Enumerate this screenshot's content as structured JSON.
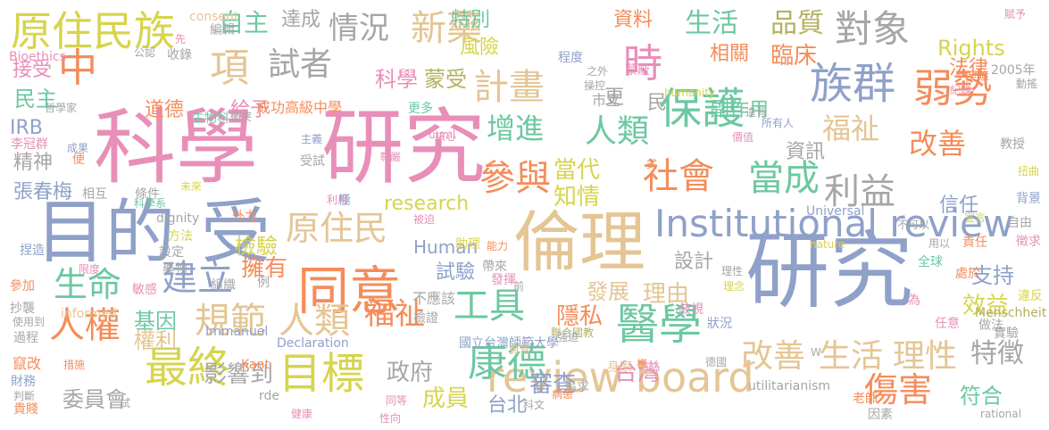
{
  "palette": {
    "orange": "#f58c5a",
    "pink": "#e88fb9",
    "blue": "#8fa1c9",
    "sand": "#e4c594",
    "green": "#6cc8a2",
    "gray": "#a6a6a6",
    "yellow": "#d7d44d",
    "olive": "#b3b05f"
  },
  "words": [
    {
      "text": "科學",
      "color": "pink"
    },
    {
      "text": "研究",
      "color": "pink"
    },
    {
      "text": "研究",
      "color": "blue"
    },
    {
      "text": "倫理",
      "color": "sand"
    },
    {
      "text": "目的",
      "color": "blue"
    },
    {
      "text": "受",
      "color": "blue"
    },
    {
      "text": "原住民族",
      "color": "yellow"
    },
    {
      "text": "中",
      "color": "orange"
    },
    {
      "text": "項",
      "color": "sand"
    },
    {
      "text": "試者",
      "color": "gray"
    },
    {
      "text": "情況",
      "color": "gray"
    },
    {
      "text": "新藥",
      "color": "sand"
    },
    {
      "text": "計畫",
      "color": "sand"
    },
    {
      "text": "時",
      "color": "pink"
    },
    {
      "text": "對象",
      "color": "gray"
    },
    {
      "text": "族群",
      "color": "blue"
    },
    {
      "text": "弱勢",
      "color": "orange"
    },
    {
      "text": "保護",
      "color": "green"
    },
    {
      "text": "增進",
      "color": "green"
    },
    {
      "text": "人類",
      "color": "green"
    },
    {
      "text": "參與",
      "color": "orange"
    },
    {
      "text": "社會",
      "color": "orange"
    },
    {
      "text": "當成",
      "color": "green"
    },
    {
      "text": "利益",
      "color": "gray"
    },
    {
      "text": "Institutional review",
      "color": "blue"
    },
    {
      "text": "review board",
      "color": "sand"
    },
    {
      "text": "同意",
      "color": "orange"
    },
    {
      "text": "醫學",
      "color": "green"
    },
    {
      "text": "康德",
      "color": "green"
    },
    {
      "text": "最終",
      "color": "yellow"
    },
    {
      "text": "目標",
      "color": "yellow"
    },
    {
      "text": "人權",
      "color": "orange"
    },
    {
      "text": "規範",
      "color": "sand"
    },
    {
      "text": "人類",
      "color": "sand"
    },
    {
      "text": "原住民",
      "color": "sand"
    },
    {
      "text": "建立",
      "color": "blue"
    },
    {
      "text": "生命",
      "color": "green"
    },
    {
      "text": "工具",
      "color": "green"
    },
    {
      "text": "改善",
      "color": "sand"
    },
    {
      "text": "生活",
      "color": "sand"
    },
    {
      "text": "理性",
      "color": "sand"
    },
    {
      "text": "特徵",
      "color": "gray"
    },
    {
      "text": "傷害",
      "color": "orange"
    },
    {
      "text": "福祉",
      "color": "sand"
    },
    {
      "text": "改善",
      "color": "orange"
    },
    {
      "text": "福祉",
      "color": "orange"
    },
    {
      "text": "當代",
      "color": "yellow"
    },
    {
      "text": "知情",
      "color": "yellow"
    },
    {
      "text": "檢驗",
      "color": "yellow"
    },
    {
      "text": "擁有",
      "color": "orange"
    },
    {
      "text": "research",
      "color": "yellow"
    },
    {
      "text": "Human",
      "color": "blue"
    },
    {
      "text": "生活",
      "color": "green"
    },
    {
      "text": "品質",
      "color": "olive"
    },
    {
      "text": "自主",
      "color": "green"
    },
    {
      "text": "達成",
      "color": "gray"
    },
    {
      "text": "特別",
      "color": "green"
    },
    {
      "text": "風險",
      "color": "yellow"
    },
    {
      "text": "資料",
      "color": "orange"
    },
    {
      "text": "相關",
      "color": "orange"
    },
    {
      "text": "臨床",
      "color": "orange"
    },
    {
      "text": "Rights",
      "color": "yellow"
    },
    {
      "text": "法律",
      "color": "orange"
    },
    {
      "text": "科學",
      "color": "pink"
    },
    {
      "text": "蒙受",
      "color": "olive"
    },
    {
      "text": "道德",
      "color": "orange"
    },
    {
      "text": "給予",
      "color": "pink"
    },
    {
      "text": "成功高級中學",
      "color": "orange"
    },
    {
      "text": "副作用",
      "color": "green"
    },
    {
      "text": "資訊",
      "color": "gray"
    },
    {
      "text": "信任",
      "color": "blue"
    },
    {
      "text": "民主",
      "color": "green"
    },
    {
      "text": "接受",
      "color": "pink"
    },
    {
      "text": "精神",
      "color": "gray"
    },
    {
      "text": "張春梅",
      "color": "blue"
    },
    {
      "text": "基因",
      "color": "green"
    },
    {
      "text": "權利",
      "color": "sand"
    },
    {
      "text": "影響到",
      "color": "gray"
    },
    {
      "text": "委員會",
      "color": "gray"
    },
    {
      "text": "政府",
      "color": "gray"
    },
    {
      "text": "審查",
      "color": "blue"
    },
    {
      "text": "台灣",
      "color": "pink"
    },
    {
      "text": "成員",
      "color": "yellow"
    },
    {
      "text": "台北",
      "color": "blue"
    },
    {
      "text": "發展",
      "color": "sand"
    },
    {
      "text": "理由",
      "color": "sand"
    },
    {
      "text": "隱私",
      "color": "orange"
    },
    {
      "text": "試驗",
      "color": "blue"
    },
    {
      "text": "設計",
      "color": "gray"
    },
    {
      "text": "支持",
      "color": "blue"
    },
    {
      "text": "效益",
      "color": "yellow"
    },
    {
      "text": "符合",
      "color": "green"
    },
    {
      "text": "老師",
      "color": "orange"
    },
    {
      "text": "IRB",
      "color": "blue"
    },
    {
      "text": "更",
      "color": "gray"
    },
    {
      "text": "民",
      "color": "gray"
    },
    {
      "text": "市立",
      "color": "gray"
    },
    {
      "text": "國立台灣師範大學",
      "color": "blue"
    },
    {
      "text": "不應該",
      "color": "gray"
    },
    {
      "text": "聯合國教",
      "color": "olive"
    },
    {
      "text": "Declaration",
      "color": "blue"
    },
    {
      "text": "utilitarianism",
      "color": "gray"
    },
    {
      "text": "Universal",
      "color": "blue"
    },
    {
      "text": "Menschheit",
      "color": "olive"
    },
    {
      "text": "informed",
      "color": "sand"
    },
    {
      "text": "Immanuel",
      "color": "blue"
    },
    {
      "text": "consent",
      "color": "sand"
    },
    {
      "text": "Bioethics",
      "color": "pink"
    },
    {
      "text": "dignity",
      "color": "gray"
    },
    {
      "text": "humanity",
      "color": "yellow"
    },
    {
      "text": "rational",
      "color": "gray"
    },
    {
      "text": "nature",
      "color": "yellow"
    },
    {
      "text": "Kant",
      "color": "orange"
    },
    {
      "text": "rde",
      "color": "gray"
    },
    {
      "text": "uuml",
      "color": "pink"
    },
    {
      "text": "2005年",
      "color": "gray"
    },
    {
      "text": "賦予",
      "color": "pink"
    },
    {
      "text": "編輯",
      "color": "gray"
    },
    {
      "text": "公認",
      "color": "gray"
    },
    {
      "text": "收錄",
      "color": "gray"
    },
    {
      "text": "哲學家",
      "color": "gray"
    },
    {
      "text": "李冠群",
      "color": "pink"
    },
    {
      "text": "成果",
      "color": "blue"
    },
    {
      "text": "生物科",
      "color": "green"
    },
    {
      "text": "衝突",
      "color": "gray"
    },
    {
      "text": "主義",
      "color": "blue"
    },
    {
      "text": "受試",
      "color": "gray"
    },
    {
      "text": "尊嚴",
      "color": "pink"
    },
    {
      "text": "核心",
      "color": "pink"
    },
    {
      "text": "更多",
      "color": "green"
    },
    {
      "text": "程度",
      "color": "blue"
    },
    {
      "text": "之外",
      "color": "gray"
    },
    {
      "text": "操控",
      "color": "gray"
    },
    {
      "text": "蒙蔽",
      "color": "pink"
    },
    {
      "text": "紀錄",
      "color": "pink"
    },
    {
      "text": "保障",
      "color": "orange"
    },
    {
      "text": "動搖",
      "color": "gray"
    },
    {
      "text": "違背",
      "color": "gray"
    },
    {
      "text": "所有人",
      "color": "blue"
    },
    {
      "text": "教授",
      "color": "gray"
    },
    {
      "text": "價值",
      "color": "pink"
    },
    {
      "text": "式",
      "color": "orange"
    },
    {
      "text": "扭曲",
      "color": "yellow"
    },
    {
      "text": "背景",
      "color": "blue"
    },
    {
      "text": "自由",
      "color": "gray"
    },
    {
      "text": "宣言",
      "color": "yellow"
    },
    {
      "text": "不可以",
      "color": "gray"
    },
    {
      "text": "徵求",
      "color": "pink"
    },
    {
      "text": "用以",
      "color": "gray"
    },
    {
      "text": "責任",
      "color": "orange"
    },
    {
      "text": "全球",
      "color": "green"
    },
    {
      "text": "理性",
      "color": "gray"
    },
    {
      "text": "理念",
      "color": "yellow"
    },
    {
      "text": "處於",
      "color": "orange"
    },
    {
      "text": "違反",
      "color": "yellow"
    },
    {
      "text": "實驗",
      "color": "gray"
    },
    {
      "text": "做法",
      "color": "gray"
    },
    {
      "text": "任意",
      "color": "pink"
    },
    {
      "text": "為",
      "color": "pink"
    },
    {
      "text": "狀況",
      "color": "blue"
    },
    {
      "text": "歧視",
      "color": "pink"
    },
    {
      "text": "因素",
      "color": "gray"
    },
    {
      "text": "德國",
      "color": "gray"
    },
    {
      "text": "身家",
      "color": "sand"
    },
    {
      "text": "樣",
      "color": "orange"
    },
    {
      "text": "追求",
      "color": "gray"
    },
    {
      "text": "病患",
      "color": "orange"
    },
    {
      "text": "科文",
      "color": "gray"
    },
    {
      "text": "貧富",
      "color": "sand"
    },
    {
      "text": "同等",
      "color": "pink"
    },
    {
      "text": "性向",
      "color": "pink"
    },
    {
      "text": "健康",
      "color": "pink"
    },
    {
      "text": "檢證",
      "color": "gray"
    },
    {
      "text": "強迫",
      "color": "gray"
    },
    {
      "text": "帶來",
      "color": "gray"
    },
    {
      "text": "發揮",
      "color": "pink"
    },
    {
      "text": "能力",
      "color": "orange"
    },
    {
      "text": "助理",
      "color": "yellow"
    },
    {
      "text": "被迫",
      "color": "pink"
    },
    {
      "text": "利用",
      "color": "pink"
    },
    {
      "text": "極",
      "color": "blue"
    },
    {
      "text": "外力",
      "color": "orange"
    },
    {
      "text": "方法",
      "color": "yellow"
    },
    {
      "text": "設定",
      "color": "gray"
    },
    {
      "text": "藥物",
      "color": "gray"
    },
    {
      "text": "組織",
      "color": "gray"
    },
    {
      "text": "例",
      "color": "gray"
    },
    {
      "text": "捏造",
      "color": "blue"
    },
    {
      "text": "限度",
      "color": "pink"
    },
    {
      "text": "參加",
      "color": "orange"
    },
    {
      "text": "敏感",
      "color": "pink"
    },
    {
      "text": "抄襲",
      "color": "gray"
    },
    {
      "text": "使用到",
      "color": "gray"
    },
    {
      "text": "過程",
      "color": "gray"
    },
    {
      "text": "竄改",
      "color": "orange"
    },
    {
      "text": "措施",
      "color": "orange"
    },
    {
      "text": "財務",
      "color": "blue"
    },
    {
      "text": "判斷",
      "color": "gray"
    },
    {
      "text": "貴賤",
      "color": "orange"
    },
    {
      "text": "試",
      "color": "gray"
    },
    {
      "text": "科學系",
      "color": "green"
    },
    {
      "text": "未來",
      "color": "yellow"
    },
    {
      "text": "相互",
      "color": "gray"
    },
    {
      "text": "條件",
      "color": "gray"
    },
    {
      "text": "便",
      "color": "orange"
    },
    {
      "text": "先",
      "color": "pink"
    },
    {
      "text": "前",
      "color": "gray"
    },
    {
      "text": "W",
      "color": "gray"
    }
  ]
}
